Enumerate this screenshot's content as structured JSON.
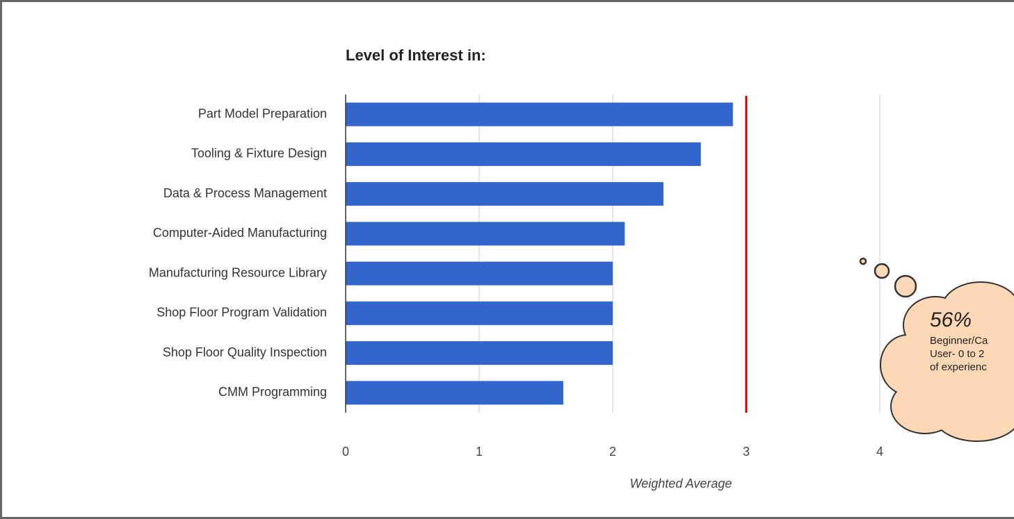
{
  "chart_data": {
    "type": "bar",
    "orientation": "horizontal",
    "title": "Level of Interest in:",
    "x_label": "Weighted Average",
    "categories": [
      "Part Model Preparation",
      "Tooling & Fixture Design",
      "Data & Process Management",
      "Computer-Aided Manufacturing",
      "Manufacturing Resource Library",
      "Shop Floor Program Validation",
      "Shop Floor Quality Inspection",
      "CMM Programming"
    ],
    "values": [
      2.9,
      2.66,
      2.38,
      2.09,
      2.0,
      2.0,
      2.0,
      1.63
    ],
    "color": "#3366cc",
    "xlim": [
      0,
      5
    ],
    "xticks": [
      0,
      1,
      2,
      3,
      4
    ],
    "grid": true,
    "reference_line": {
      "value": 3,
      "color": "#cc0000"
    },
    "callout": {
      "headline": "56%",
      "lines": [
        "Beginner/Ca",
        "User- 0 to 2",
        "of experienc"
      ]
    }
  }
}
